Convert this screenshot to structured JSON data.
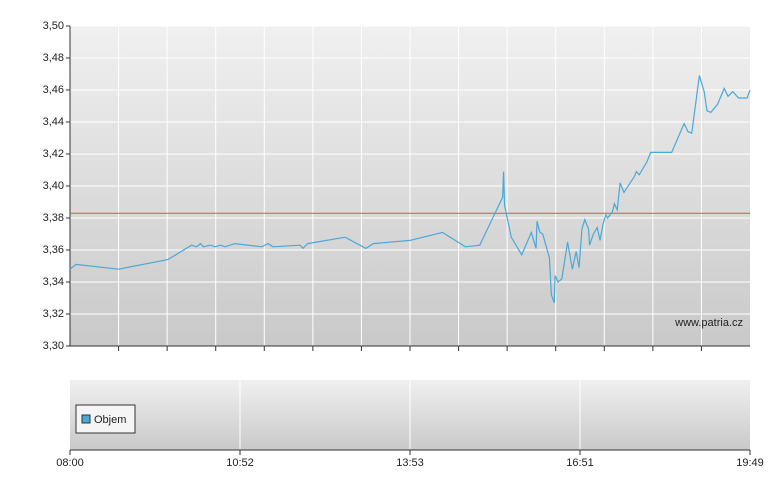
{
  "chart_data": {
    "type": "line",
    "x": [
      "08:00",
      "08:06",
      "08:49",
      "09:39",
      "10:03",
      "10:08",
      "10:12",
      "10:15",
      "10:22",
      "10:27",
      "10:32",
      "10:37",
      "10:47",
      "11:15",
      "11:22",
      "11:27",
      "11:56",
      "11:59",
      "12:04",
      "12:44",
      "13:06",
      "13:14",
      "13:53",
      "14:27",
      "14:51",
      "15:06",
      "15:30",
      "15:31",
      "15:32",
      "15:39",
      "15:50",
      "16:00",
      "16:05",
      "16:06",
      "16:09",
      "16:12",
      "16:19",
      "16:21",
      "16:24",
      "16:25",
      "16:28",
      "16:32",
      "16:38",
      "16:43",
      "16:47",
      "16:50",
      "16:53",
      "16:56",
      "17:00",
      "17:01",
      "17:05",
      "17:09",
      "17:12",
      "17:15",
      "17:18",
      "17:20",
      "17:25",
      "17:27",
      "17:30",
      "17:33",
      "17:37",
      "17:48",
      "17:50",
      "17:53",
      "18:01",
      "18:05",
      "18:27",
      "18:40",
      "18:44",
      "18:48",
      "18:56",
      "19:01",
      "19:04",
      "19:08",
      "19:15",
      "19:22",
      "19:26",
      "19:31",
      "19:37",
      "19:46",
      "19:49"
    ],
    "series": [
      {
        "color": "#4aa8d8",
        "values": [
          3.348,
          3.351,
          3.348,
          3.354,
          3.363,
          3.362,
          3.364,
          3.362,
          3.363,
          3.362,
          3.363,
          3.362,
          3.364,
          3.362,
          3.364,
          3.362,
          3.363,
          3.361,
          3.364,
          3.368,
          3.361,
          3.364,
          3.366,
          3.371,
          3.362,
          3.363,
          3.393,
          3.409,
          3.388,
          3.368,
          3.357,
          3.371,
          3.361,
          3.378,
          3.371,
          3.37,
          3.355,
          3.332,
          3.327,
          3.344,
          3.34,
          3.342,
          3.365,
          3.348,
          3.359,
          3.349,
          3.373,
          3.379,
          3.373,
          3.363,
          3.37,
          3.374,
          3.366,
          3.376,
          3.382,
          3.38,
          3.384,
          3.389,
          3.385,
          3.402,
          3.396,
          3.406,
          3.409,
          3.407,
          3.415,
          3.421,
          3.421,
          3.439,
          3.434,
          3.433,
          3.469,
          3.459,
          3.447,
          3.446,
          3.451,
          3.461,
          3.456,
          3.459,
          3.455,
          3.455,
          3.46
        ]
      }
    ],
    "reference_line": 3.383,
    "reference_color": "#e05050",
    "ylim": [
      3.3,
      3.5
    ],
    "yticks": [
      {
        "value": 3.3,
        "label": "3,30"
      },
      {
        "value": 3.32,
        "label": "3,32"
      },
      {
        "value": 3.34,
        "label": "3,34"
      },
      {
        "value": 3.36,
        "label": "3,36"
      },
      {
        "value": 3.38,
        "label": "3,38"
      },
      {
        "value": 3.4,
        "label": "3,40"
      },
      {
        "value": 3.42,
        "label": "3,42"
      },
      {
        "value": 3.44,
        "label": "3,44"
      },
      {
        "value": 3.46,
        "label": "3,46"
      },
      {
        "value": 3.48,
        "label": "3,48"
      },
      {
        "value": 3.5,
        "label": "3,50"
      }
    ],
    "xticks": [
      "08:00",
      "10:52",
      "13:53",
      "16:51",
      "19:49"
    ],
    "grid": true,
    "watermark": "www.patria.cz",
    "volume_legend": "Objem",
    "volume_color": "#4aa8d8"
  }
}
